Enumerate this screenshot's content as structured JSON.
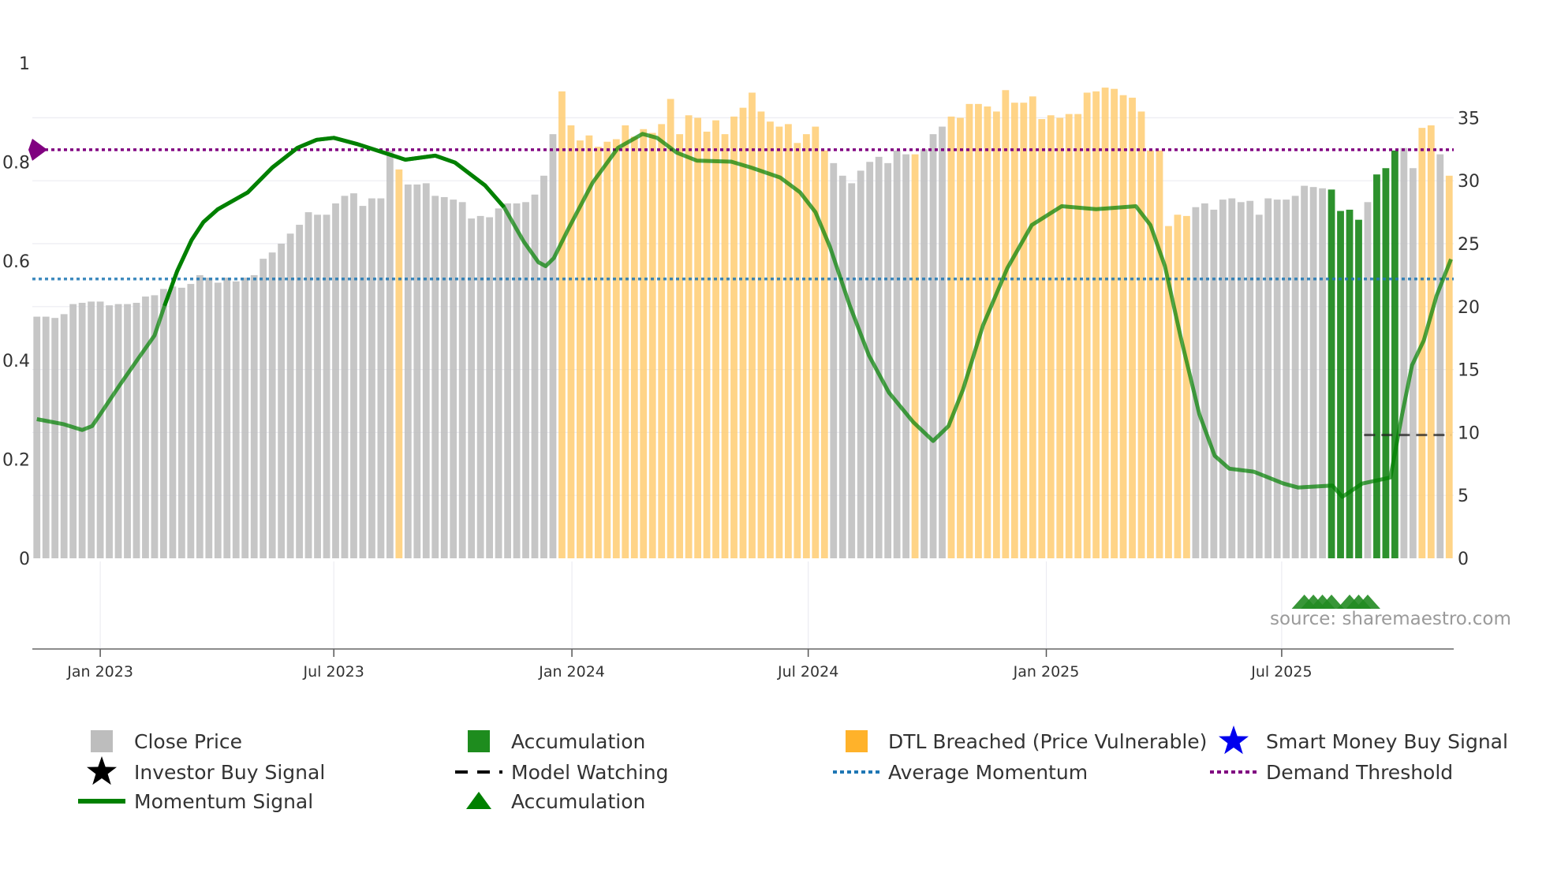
{
  "chart_data": {
    "type": "bar",
    "title": "",
    "left_axis": {
      "ticks": [
        "0",
        "0.2",
        "0.4",
        "0.6",
        "0.8",
        "1"
      ],
      "tick_values": [
        0,
        0.2,
        0.4,
        0.6,
        0.8,
        1
      ],
      "range": [
        0,
        1
      ]
    },
    "right_axis": {
      "ticks": [
        "0",
        "5",
        "10",
        "15",
        "20",
        "25",
        "30",
        "35"
      ],
      "tick_values": [
        0,
        5,
        10,
        15,
        20,
        25,
        30,
        35
      ],
      "range": [
        0,
        39.3
      ]
    },
    "x_ticks": [
      {
        "label": "Jan 2023",
        "week_index": 7.0
      },
      {
        "label": "Jul 2023",
        "week_index": 32.8
      },
      {
        "label": "Jan 2024",
        "week_index": 59.1
      },
      {
        "label": "Jul 2024",
        "week_index": 85.2
      },
      {
        "label": "Jan 2025",
        "week_index": 111.5
      },
      {
        "label": "Jul 2025",
        "week_index": 137.5
      }
    ],
    "close_price": [
      19.2,
      19.2,
      19.1,
      19.4,
      20.2,
      20.3,
      20.4,
      20.4,
      20.1,
      20.2,
      20.2,
      20.3,
      20.8,
      20.9,
      21.4,
      21.6,
      21.5,
      21.8,
      22.5,
      22.3,
      21.9,
      22.3,
      22.0,
      22.3,
      22.5,
      23.8,
      24.3,
      25.0,
      25.8,
      26.5,
      27.5,
      27.3,
      27.3,
      28.2,
      28.8,
      29.0,
      28.0,
      28.6,
      28.6,
      32.4,
      30.9,
      29.7,
      29.7,
      29.8,
      28.8,
      28.7,
      28.5,
      28.3,
      27.0,
      27.2,
      27.1,
      27.8,
      28.2,
      28.2,
      28.3,
      28.9,
      30.4,
      33.7,
      37.1,
      34.4,
      33.2,
      33.6,
      32.7,
      33.1,
      33.3,
      34.4,
      33.5,
      34.1,
      33.8,
      34.5,
      36.5,
      33.7,
      35.2,
      35.0,
      33.9,
      34.8,
      33.7,
      35.1,
      35.8,
      37.0,
      35.5,
      34.7,
      34.3,
      34.5,
      33.0,
      33.7,
      34.3,
      32.4,
      31.4,
      30.4,
      29.8,
      30.8,
      31.5,
      31.9,
      31.4,
      32.4,
      32.1,
      32.1,
      32.5,
      33.7,
      34.3,
      35.1,
      35.0,
      36.1,
      36.1,
      35.9,
      35.5,
      37.2,
      36.2,
      36.2,
      36.7,
      34.9,
      35.2,
      35.0,
      35.3,
      35.3,
      37.0,
      37.1,
      37.4,
      37.3,
      36.8,
      36.6,
      35.5,
      32.4,
      32.4,
      26.4,
      27.3,
      27.2,
      27.9,
      28.2,
      27.7,
      28.5,
      28.6,
      28.3,
      28.4,
      27.3,
      28.6,
      28.5,
      28.5,
      28.8,
      29.6,
      29.5,
      29.4,
      29.3,
      27.6,
      27.7,
      26.9,
      28.3,
      30.5,
      31.0,
      32.4,
      32.6,
      31.0,
      34.2,
      34.4,
      32.1,
      30.4
    ],
    "bar_state": "ggggggggggggggggggggggggggggggggggggggggogggggggggggggggggoooooooooooooooooooooooooooooogggggggggogggooooooooooooooooooooooooooogggggggggggggggaaaagaaaggoogoogg",
    "bar_colors": {
      "g": "#c0c0c0",
      "o": "#ffcf7a",
      "a": "#228b22"
    },
    "momentum": [
      [
        0,
        0.281
      ],
      [
        2.9,
        0.271
      ],
      [
        5.0,
        0.259
      ],
      [
        6.1,
        0.267
      ],
      [
        7.0,
        0.291
      ],
      [
        9.2,
        0.351
      ],
      [
        11.3,
        0.406
      ],
      [
        13.0,
        0.45
      ],
      [
        14.1,
        0.51
      ],
      [
        15.5,
        0.58
      ],
      [
        17.1,
        0.643
      ],
      [
        18.4,
        0.679
      ],
      [
        20.0,
        0.705
      ],
      [
        23.3,
        0.739
      ],
      [
        26.0,
        0.789
      ],
      [
        28.8,
        0.829
      ],
      [
        30.9,
        0.845
      ],
      [
        32.8,
        0.849
      ],
      [
        35.3,
        0.837
      ],
      [
        38.0,
        0.821
      ],
      [
        40.7,
        0.805
      ],
      [
        44.0,
        0.813
      ],
      [
        46.2,
        0.799
      ],
      [
        49.5,
        0.753
      ],
      [
        51.6,
        0.709
      ],
      [
        53.8,
        0.639
      ],
      [
        55.4,
        0.598
      ],
      [
        56.2,
        0.59
      ],
      [
        57.1,
        0.606
      ],
      [
        58.7,
        0.665
      ],
      [
        61.4,
        0.759
      ],
      [
        64.2,
        0.829
      ],
      [
        66.9,
        0.857
      ],
      [
        68.5,
        0.849
      ],
      [
        70.7,
        0.819
      ],
      [
        72.9,
        0.803
      ],
      [
        76.7,
        0.801
      ],
      [
        78.9,
        0.789
      ],
      [
        82.1,
        0.769
      ],
      [
        84.3,
        0.739
      ],
      [
        86.0,
        0.699
      ],
      [
        87.6,
        0.629
      ],
      [
        89.8,
        0.51
      ],
      [
        91.9,
        0.41
      ],
      [
        94.1,
        0.335
      ],
      [
        96.8,
        0.275
      ],
      [
        99.0,
        0.237
      ],
      [
        100.7,
        0.267
      ],
      [
        102.3,
        0.341
      ],
      [
        104.5,
        0.47
      ],
      [
        107.2,
        0.586
      ],
      [
        109.9,
        0.673
      ],
      [
        113.2,
        0.711
      ],
      [
        117.0,
        0.705
      ],
      [
        121.4,
        0.711
      ],
      [
        123.0,
        0.673
      ],
      [
        124.6,
        0.59
      ],
      [
        126.3,
        0.45
      ],
      [
        128.4,
        0.291
      ],
      [
        130.1,
        0.207
      ],
      [
        131.7,
        0.181
      ],
      [
        134.4,
        0.175
      ],
      [
        137.7,
        0.151
      ],
      [
        139.3,
        0.143
      ],
      [
        143.1,
        0.147
      ],
      [
        144.2,
        0.124
      ],
      [
        146.4,
        0.151
      ],
      [
        149.5,
        0.163
      ],
      [
        150.8,
        0.291
      ],
      [
        151.9,
        0.39
      ],
      [
        153.2,
        0.44
      ],
      [
        154.6,
        0.53
      ],
      [
        156.2,
        0.604
      ]
    ],
    "average_momentum": 0.564,
    "demand_threshold": 0.825,
    "model_watching": {
      "value_right_axis": 9.8,
      "from_week": 146.6,
      "to_week": 156.2
    },
    "accumulation_markers": [
      140,
      141,
      142,
      143,
      145,
      146,
      147
    ],
    "colors": {
      "momentum": "#008000",
      "average": "#1f77b4",
      "threshold": "#800080",
      "accum_marker": "#228b22",
      "model": "#222222",
      "smart_money": "#0000ee"
    },
    "legend": [
      {
        "label": "Close Price",
        "icon": "gray-square"
      },
      {
        "label": "Accumulation",
        "icon": "green-square"
      },
      {
        "label": "DTL Breached (Price Vulnerable)",
        "icon": "orange-square"
      },
      {
        "label": "Smart Money Buy Signal",
        "icon": "blue-star"
      },
      {
        "label": "Investor Buy Signal",
        "icon": "black-star"
      },
      {
        "label": "Model Watching",
        "icon": "black-dash"
      },
      {
        "label": "Average Momentum",
        "icon": "blue-dots"
      },
      {
        "label": "Demand Threshold",
        "icon": "purple-dots"
      },
      {
        "label": "Momentum Signal",
        "icon": "green-line"
      },
      {
        "label": "Accumulation",
        "icon": "green-triangle"
      }
    ],
    "legend_placement": "bottom",
    "source": "source: sharemaestro.com"
  }
}
